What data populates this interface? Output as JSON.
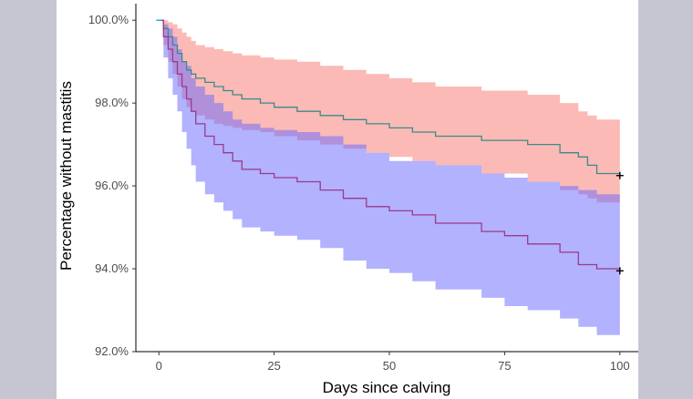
{
  "chart_data": {
    "type": "line",
    "subtype": "kaplan-meier-step",
    "title": "",
    "xlabel": "Days since calving",
    "ylabel": "Percentage without mastitis",
    "xlim": [
      -5,
      104
    ],
    "ylim": [
      92.0,
      100.4
    ],
    "x_ticks": [
      0,
      25,
      50,
      75,
      100
    ],
    "y_ticks": [
      92.0,
      94.0,
      96.0,
      98.0,
      100.0
    ],
    "y_tick_labels": [
      "92.0%",
      "94.0%",
      "96.0%",
      "98.0%",
      "100.0%"
    ],
    "grid": false,
    "legend": "none",
    "series": [
      {
        "color": "#3d8a8a",
        "band_color": "#f8766d",
        "censor_marker": "+",
        "x": [
          0,
          1,
          2,
          3,
          4,
          5,
          6,
          7,
          8,
          10,
          12,
          14,
          16,
          18,
          22,
          25,
          30,
          35,
          40,
          45,
          50,
          55,
          60,
          70,
          80,
          87,
          91,
          93,
          95,
          100
        ],
        "y": [
          100.0,
          99.8,
          99.6,
          99.4,
          99.2,
          99.0,
          98.8,
          98.7,
          98.6,
          98.5,
          98.4,
          98.3,
          98.2,
          98.1,
          98.0,
          97.9,
          97.8,
          97.7,
          97.6,
          97.5,
          97.4,
          97.3,
          97.2,
          97.1,
          97.0,
          96.8,
          96.7,
          96.5,
          96.3,
          96.25
        ],
        "ci_lower": [
          100.0,
          99.4,
          99.0,
          98.7,
          98.4,
          98.1,
          97.9,
          97.8,
          97.7,
          97.6,
          97.5,
          97.45,
          97.4,
          97.35,
          97.3,
          97.2,
          97.1,
          97.0,
          96.9,
          96.8,
          96.7,
          96.6,
          96.5,
          96.3,
          96.1,
          95.9,
          95.8,
          95.7,
          95.6,
          95.5
        ],
        "ci_upper": [
          100.0,
          100.0,
          99.95,
          99.9,
          99.8,
          99.7,
          99.6,
          99.5,
          99.4,
          99.35,
          99.3,
          99.25,
          99.2,
          99.15,
          99.1,
          99.05,
          99.0,
          98.9,
          98.8,
          98.7,
          98.6,
          98.5,
          98.4,
          98.3,
          98.2,
          98.0,
          97.8,
          97.7,
          97.6,
          97.6
        ]
      },
      {
        "color": "#9b3a8a",
        "band_color": "#6666ff",
        "censor_marker": "+",
        "x": [
          0,
          1,
          2,
          3,
          4,
          5,
          6,
          7,
          8,
          10,
          12,
          14,
          16,
          18,
          22,
          25,
          30,
          35,
          40,
          45,
          50,
          55,
          60,
          70,
          75,
          80,
          87,
          91,
          95,
          100
        ],
        "y": [
          100.0,
          99.6,
          99.3,
          99.0,
          98.7,
          98.4,
          98.1,
          97.8,
          97.5,
          97.2,
          97.0,
          96.8,
          96.6,
          96.4,
          96.3,
          96.2,
          96.1,
          95.9,
          95.7,
          95.5,
          95.4,
          95.3,
          95.1,
          94.9,
          94.8,
          94.6,
          94.4,
          94.1,
          94.0,
          93.95
        ],
        "ci_lower": [
          100.0,
          99.1,
          98.6,
          98.2,
          97.8,
          97.3,
          96.9,
          96.5,
          96.1,
          95.8,
          95.6,
          95.4,
          95.2,
          95.0,
          94.9,
          94.8,
          94.7,
          94.5,
          94.2,
          94.0,
          93.9,
          93.7,
          93.5,
          93.3,
          93.1,
          93.0,
          92.8,
          92.6,
          92.4,
          92.3
        ],
        "ci_upper": [
          100.0,
          99.9,
          99.8,
          99.6,
          99.3,
          99.0,
          98.9,
          98.6,
          98.4,
          98.2,
          98.0,
          97.8,
          97.6,
          97.5,
          97.4,
          97.35,
          97.3,
          97.2,
          97.0,
          96.8,
          96.6,
          96.6,
          96.5,
          96.3,
          96.2,
          96.1,
          96.0,
          95.9,
          95.8,
          95.8
        ]
      }
    ]
  }
}
